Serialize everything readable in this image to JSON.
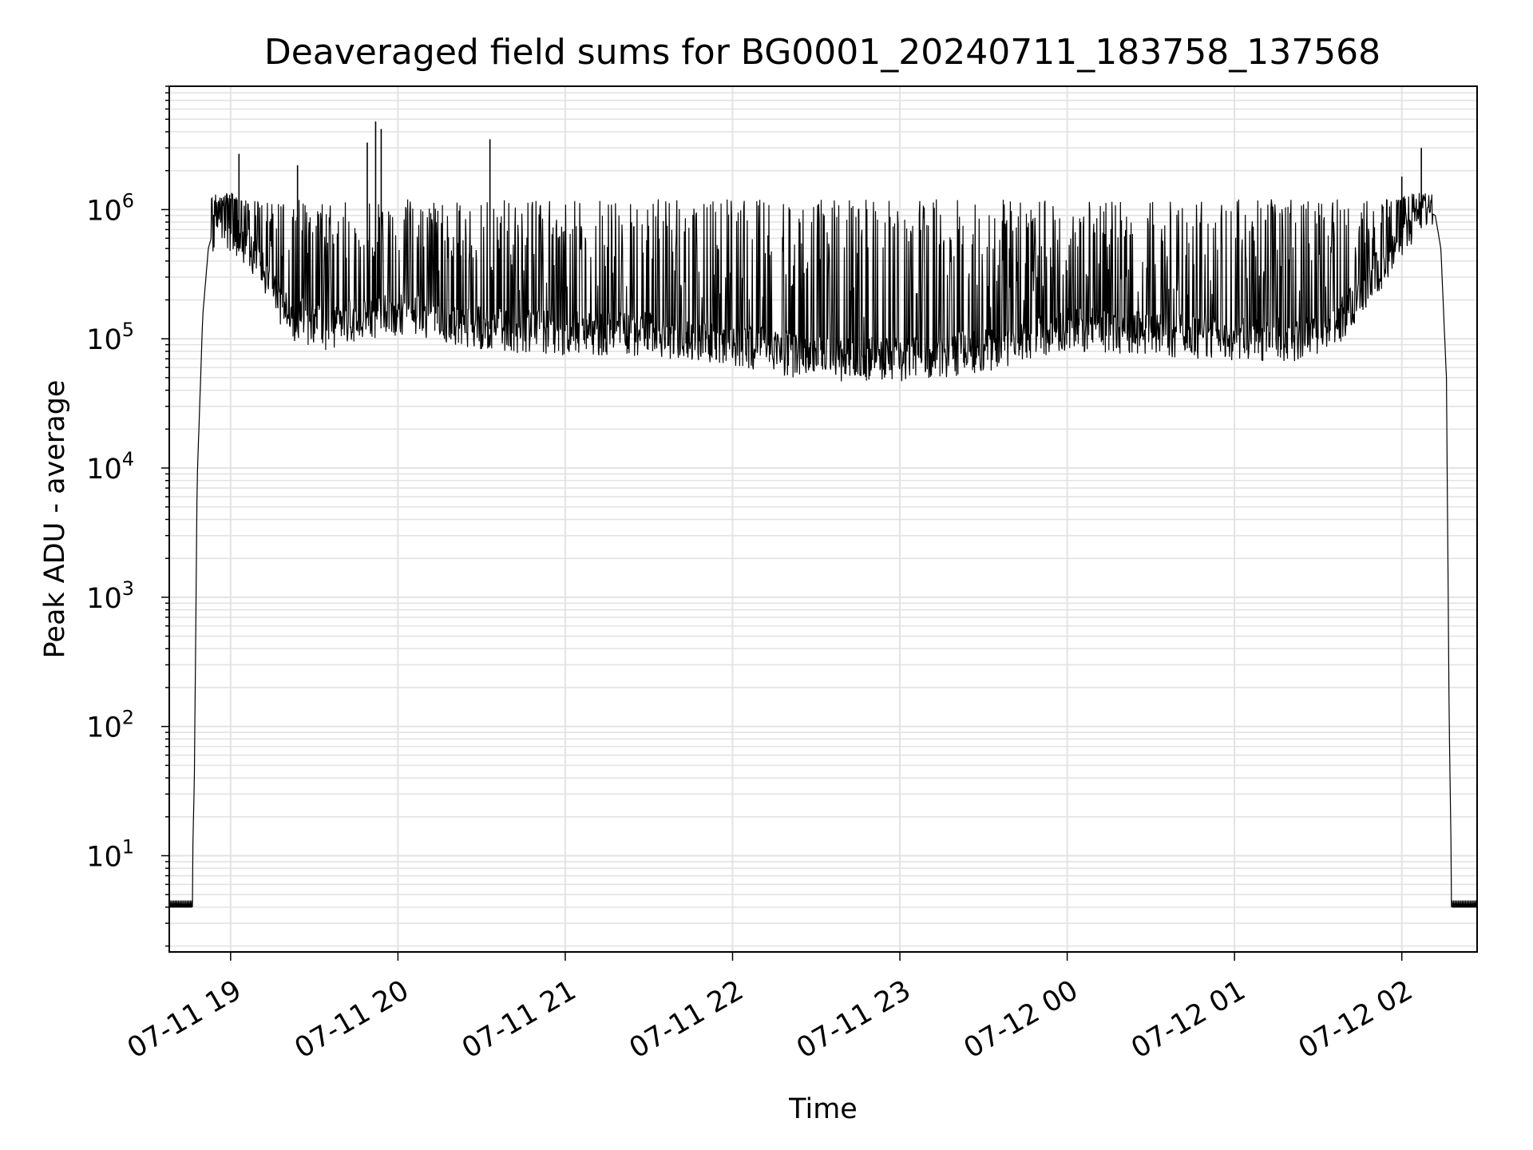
{
  "chart_data": {
    "type": "line",
    "title": "Deaveraged field sums for BG0001_20240711_183758_137568",
    "xlabel": "Time",
    "ylabel": "Peak ADU - average",
    "yscale": "log",
    "ylim": [
      1.8,
      9000000
    ],
    "xlim": [
      "2024-07-11 18:38",
      "2024-07-12 02:27"
    ],
    "grid": true,
    "line_color": "#000000",
    "x_tick_labels": [
      "07-11 19",
      "07-11 20",
      "07-11 21",
      "07-11 22",
      "07-11 23",
      "07-12 00",
      "07-12 01",
      "07-12 02"
    ],
    "y_ticks": [
      {
        "base": "10",
        "exp": "1"
      },
      {
        "base": "10",
        "exp": "2"
      },
      {
        "base": "10",
        "exp": "3"
      },
      {
        "base": "10",
        "exp": "4"
      },
      {
        "base": "10",
        "exp": "5"
      },
      {
        "base": "10",
        "exp": "6"
      }
    ],
    "series": [
      {
        "baseline_points": [
          [
            "2024-07-11 18:38",
            4
          ],
          [
            "2024-07-11 18:46",
            4
          ],
          [
            "2024-07-11 18:47",
            40
          ],
          [
            "2024-07-11 18:48",
            8000
          ],
          [
            "2024-07-11 18:50",
            150000
          ],
          [
            "2024-07-11 18:52",
            500000
          ],
          [
            "2024-07-11 18:55",
            850000
          ],
          [
            "2024-07-11 19:00",
            700000
          ],
          [
            "2024-07-11 19:10",
            400000
          ],
          [
            "2024-07-11 19:20",
            150000
          ],
          [
            "2024-07-11 19:35",
            120000
          ],
          [
            "2024-07-11 19:50",
            150000
          ],
          [
            "2024-07-11 20:10",
            150000
          ],
          [
            "2024-07-11 20:30",
            120000
          ],
          [
            "2024-07-11 21:00",
            110000
          ],
          [
            "2024-07-11 21:30",
            110000
          ],
          [
            "2024-07-11 22:00",
            90000
          ],
          [
            "2024-07-11 22:30",
            70000
          ],
          [
            "2024-07-11 23:00",
            70000
          ],
          [
            "2024-07-11 23:30",
            80000
          ],
          [
            "2024-07-12 00:00",
            120000
          ],
          [
            "2024-07-12 00:30",
            110000
          ],
          [
            "2024-07-12 01:00",
            100000
          ],
          [
            "2024-07-12 01:30",
            100000
          ],
          [
            "2024-07-12 01:40",
            150000
          ],
          [
            "2024-07-12 01:50",
            300000
          ],
          [
            "2024-07-12 02:00",
            600000
          ],
          [
            "2024-07-12 02:05",
            900000
          ],
          [
            "2024-07-12 02:10",
            950000
          ],
          [
            "2024-07-12 02:12",
            900000
          ],
          [
            "2024-07-12 02:14",
            500000
          ],
          [
            "2024-07-12 02:16",
            50000
          ],
          [
            "2024-07-12 02:17",
            100
          ],
          [
            "2024-07-12 02:18",
            4
          ],
          [
            "2024-07-12 02:27",
            4
          ]
        ],
        "spikes": [
          [
            "2024-07-11 19:03",
            2700000
          ],
          [
            "2024-07-11 19:24",
            2200000
          ],
          [
            "2024-07-11 19:49",
            3300000
          ],
          [
            "2024-07-11 19:52",
            4800000
          ],
          [
            "2024-07-11 19:54",
            4200000
          ],
          [
            "2024-07-11 20:33",
            3500000
          ],
          [
            "2024-07-12 02:07",
            3000000
          ],
          [
            "2024-07-12 02:00",
            1800000
          ]
        ]
      }
    ]
  }
}
